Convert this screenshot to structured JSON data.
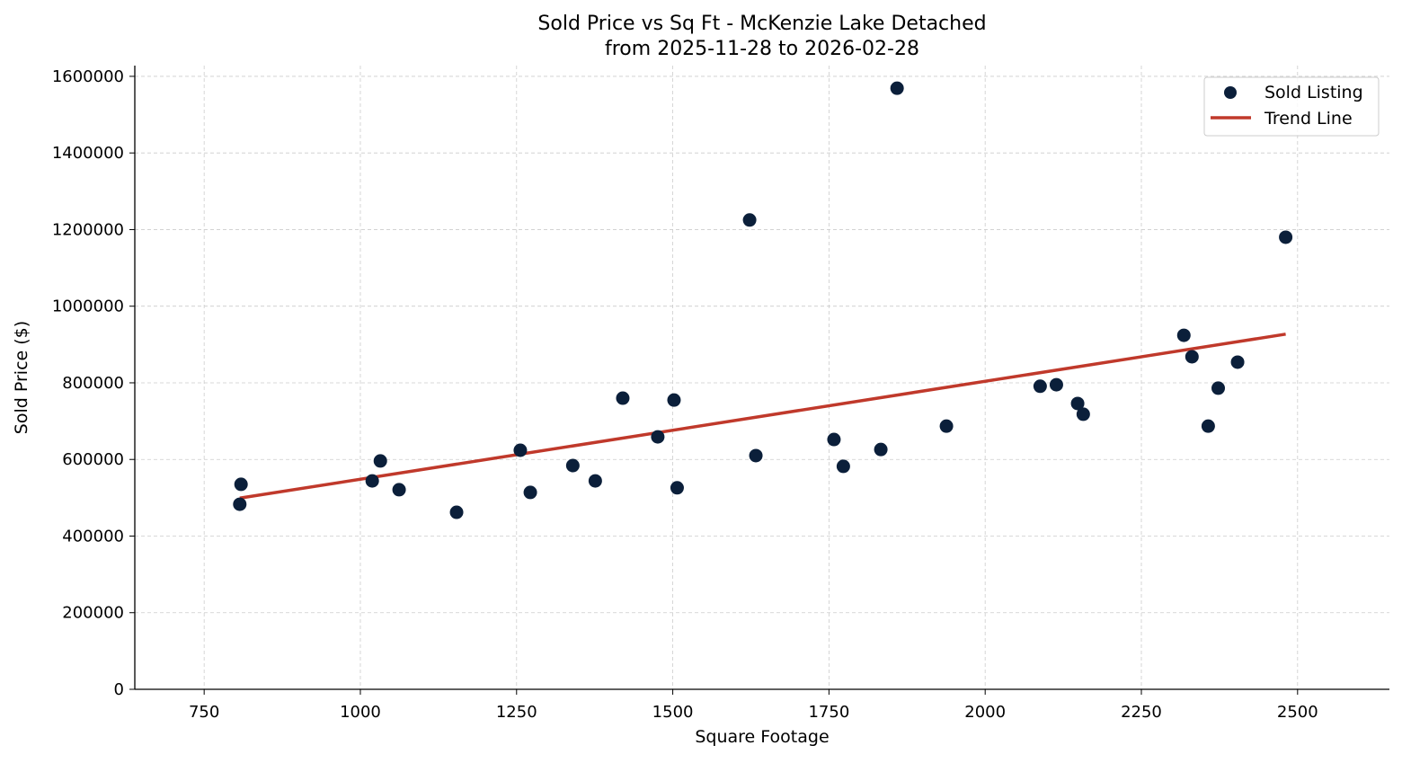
{
  "chart_data": {
    "type": "scatter",
    "title": "Sold Price vs Sq Ft - McKenzie Lake Detached",
    "subtitle": "from 2025-11-28 to 2026-02-28",
    "xlabel": "Square Footage",
    "ylabel": "Sold Price ($)",
    "xlim": [
      639,
      2647
    ],
    "ylim": [
      0,
      1628000
    ],
    "xticks": [
      750,
      1000,
      1250,
      1500,
      1750,
      2000,
      2250,
      2500
    ],
    "yticks": [
      0,
      200000,
      400000,
      600000,
      800000,
      1000000,
      1200000,
      1400000,
      1600000
    ],
    "grid": true,
    "legend_position": "top-right",
    "colors": {
      "points": "#0b1f3a",
      "trend": "#c0392b"
    },
    "series": [
      {
        "name": "Sold Listing",
        "type": "scatter",
        "points": [
          [
            807,
            483000
          ],
          [
            809,
            535000
          ],
          [
            1019,
            544000
          ],
          [
            1032,
            596000
          ],
          [
            1062,
            521000
          ],
          [
            1154,
            462000
          ],
          [
            1256,
            624000
          ],
          [
            1272,
            514000
          ],
          [
            1340,
            584000
          ],
          [
            1376,
            544000
          ],
          [
            1420,
            760000
          ],
          [
            1476,
            659000
          ],
          [
            1502,
            755000
          ],
          [
            1507,
            526000
          ],
          [
            1623,
            1225000
          ],
          [
            1633,
            610000
          ],
          [
            1758,
            652000
          ],
          [
            1773,
            582000
          ],
          [
            1833,
            626000
          ],
          [
            1859,
            1569000
          ],
          [
            1938,
            687000
          ],
          [
            2088,
            791000
          ],
          [
            2114,
            795000
          ],
          [
            2148,
            746000
          ],
          [
            2157,
            718000
          ],
          [
            2318,
            924000
          ],
          [
            2331,
            868000
          ],
          [
            2357,
            687000
          ],
          [
            2373,
            786000
          ],
          [
            2404,
            854000
          ],
          [
            2481,
            1180000
          ]
        ]
      },
      {
        "name": "Trend Line",
        "type": "line",
        "points": [
          [
            807,
            499000
          ],
          [
            2481,
            927000
          ]
        ]
      }
    ]
  }
}
